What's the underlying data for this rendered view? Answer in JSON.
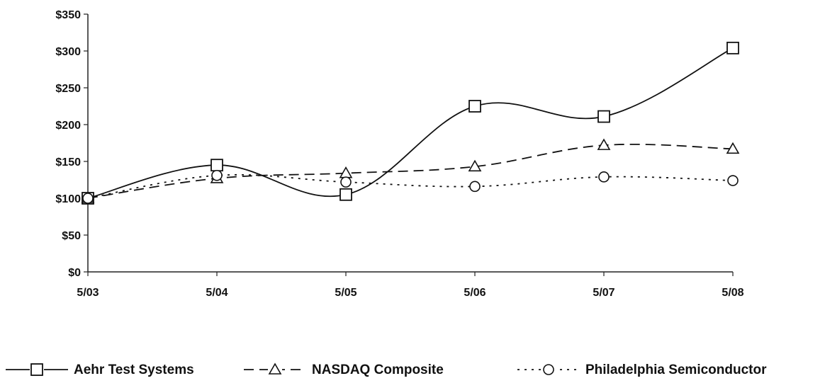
{
  "chart_data": {
    "type": "line",
    "categories": [
      "5/03",
      "5/04",
      "5/05",
      "5/06",
      "5/07",
      "5/08"
    ],
    "y_ticks": [
      "$0",
      "$50",
      "$100",
      "$150",
      "$200",
      "$250",
      "$300",
      "$350"
    ],
    "ylim": [
      0,
      350
    ],
    "grid": false,
    "legend_position": "bottom",
    "series": [
      {
        "name": "Aehr Test Systems",
        "marker": "square",
        "line_style": "solid",
        "values": [
          100,
          145,
          105,
          225,
          211,
          304
        ]
      },
      {
        "name": "NASDAQ Composite",
        "marker": "triangle",
        "line_style": "dashed",
        "values": [
          100,
          127,
          134,
          143,
          172,
          167
        ]
      },
      {
        "name": "Philadelphia Semiconductor",
        "marker": "circle",
        "line_style": "dotted",
        "values": [
          100,
          131,
          122,
          116,
          129,
          124
        ]
      }
    ]
  }
}
